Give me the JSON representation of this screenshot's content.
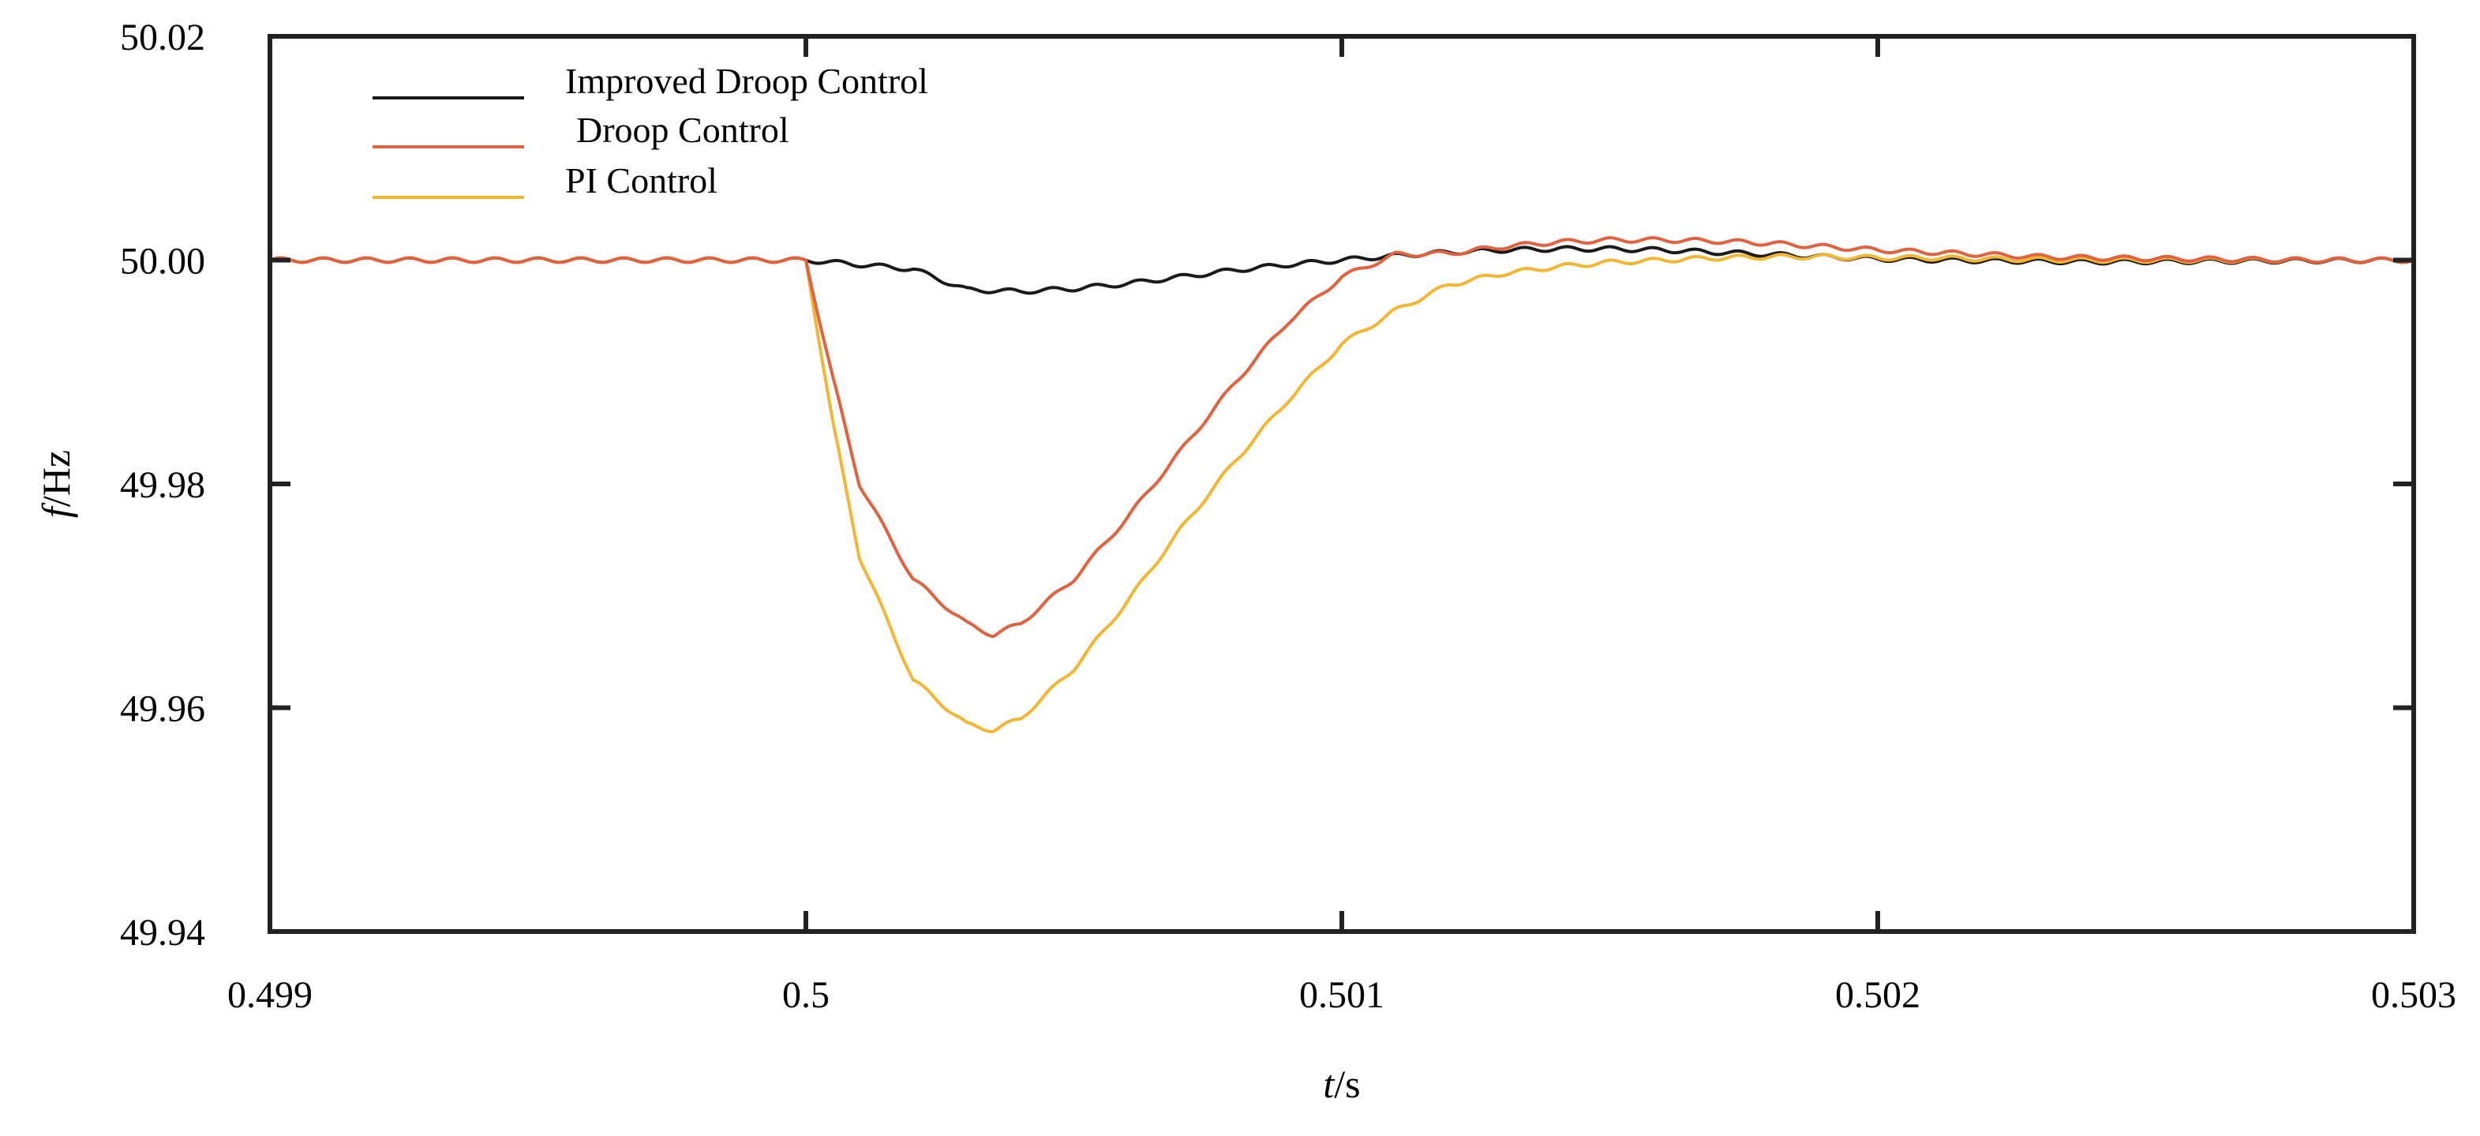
{
  "chart_data": {
    "type": "line",
    "title": "",
    "xlabel_italic": "t",
    "xlabel_unit": "/s",
    "ylabel_italic": "f",
    "ylabel_unit": "/Hz",
    "xlim": [
      0.499,
      0.503
    ],
    "ylim": [
      49.94,
      50.02
    ],
    "xticks": [
      0.499,
      0.5,
      0.501,
      0.502,
      0.503
    ],
    "xtick_labels": [
      "0.499",
      "0.5",
      "0.501",
      "0.502",
      "0.503"
    ],
    "yticks": [
      49.94,
      49.96,
      49.98,
      50.0,
      50.02
    ],
    "ytick_labels": [
      "49.94",
      "49.96",
      "49.98",
      "50.00",
      "50.02"
    ],
    "grid": false,
    "legend_position": "top-left",
    "ripple": {
      "amplitude_hz": 0.0002,
      "period_s": 8e-05
    },
    "series": [
      {
        "name": "Improved Droop Control",
        "color": "#1a1a1a",
        "x": [
          0.499,
          0.5,
          0.5002,
          0.5003,
          0.5004,
          0.5005,
          0.5006,
          0.5007,
          0.5008,
          0.5009,
          0.501,
          0.5011,
          0.5012,
          0.5013,
          0.5014,
          0.5015,
          0.5016,
          0.5017,
          0.5018,
          0.5019,
          0.502,
          0.5022,
          0.5024,
          0.5026,
          0.5028,
          0.503
        ],
        "y": [
          50.0,
          50.0,
          49.9992,
          49.99735,
          49.9972,
          49.99745,
          49.9979,
          49.9985,
          49.9991,
          49.9996,
          50.0,
          50.0004,
          50.0007,
          50.0009,
          50.001,
          50.001,
          50.0009,
          50.0007,
          50.0005,
          50.0003,
          50.0001,
          49.99995,
          49.99985,
          49.9999,
          49.99995,
          50.0
        ]
      },
      {
        "name": "Droop Control",
        "color": "#e0623e",
        "x": [
          0.499,
          0.5,
          0.50005,
          0.5001,
          0.5002,
          0.5003,
          0.50035,
          0.5004,
          0.5005,
          0.5006,
          0.5007,
          0.5008,
          0.5009,
          0.501,
          0.5011,
          0.5012,
          0.5013,
          0.5014,
          0.5015,
          0.5016,
          0.5017,
          0.5018,
          0.5019,
          0.502,
          0.5021,
          0.5022,
          0.5023,
          0.5024,
          0.5026,
          0.5028,
          0.503
        ],
        "y": [
          50.0,
          50.0,
          49.9895,
          49.98,
          49.9715,
          49.9675,
          49.9665,
          49.9675,
          49.9715,
          49.977,
          49.983,
          49.989,
          49.9945,
          49.9985,
          50.0005,
          50.0006,
          50.0012,
          50.0016,
          50.0018,
          50.0018,
          50.0017,
          50.0015,
          50.0012,
          50.0009,
          50.0007,
          50.0005,
          50.0003,
          50.0002,
          50.0001,
          50.0,
          50.0
        ]
      },
      {
        "name": "PI Control",
        "color": "#f2b632",
        "x": [
          0.499,
          0.5,
          0.50005,
          0.5001,
          0.5002,
          0.5003,
          0.50035,
          0.5004,
          0.5005,
          0.5006,
          0.5007,
          0.5008,
          0.5009,
          0.501,
          0.5011,
          0.5012,
          0.5013,
          0.5014,
          0.5015,
          0.5016,
          0.5017,
          0.5018,
          0.5019,
          0.502,
          0.5021,
          0.5022,
          0.5024,
          0.5026,
          0.5028,
          0.503
        ],
        "y": [
          50.0,
          50.0,
          49.9855,
          49.9735,
          49.9625,
          49.9585,
          49.958,
          49.959,
          49.9635,
          49.9695,
          49.976,
          49.982,
          49.9875,
          49.9925,
          49.9955,
          49.9978,
          49.9988,
          49.9994,
          49.9998,
          50.0,
          50.0002,
          50.0003,
          50.0003,
          50.0002,
          50.0002,
          50.0001,
          50.0,
          50.0,
          50.0,
          50.0
        ]
      }
    ]
  }
}
